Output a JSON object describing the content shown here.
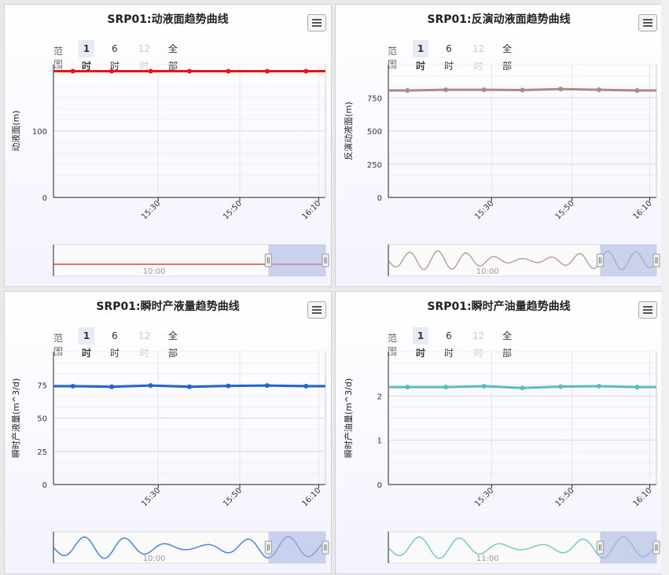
{
  "range_selector": {
    "label": "范围",
    "buttons": [
      "1时",
      "6时",
      "12时",
      "全部"
    ],
    "active": "1时",
    "disabled": "12时"
  },
  "chart_data": [
    {
      "type": "line",
      "title": "SRP01:动液面趋势曲线",
      "ylabel": "动液面(m)",
      "ylim": [
        0,
        200
      ],
      "yticks": [
        0,
        100
      ],
      "x_ticks": [
        "15:30",
        "15:50",
        "16:10"
      ],
      "x_range_min": [
        15.0,
        16.2
      ],
      "color": "#ee1111",
      "series": [
        {
          "x_min": [
            5,
            15,
            25,
            35,
            45,
            55,
            65
          ],
          "values": [
            190,
            190,
            190,
            190,
            190,
            190,
            190
          ]
        }
      ],
      "navigator_label": "10:00"
    },
    {
      "type": "line",
      "title": "SRP01:反演动液面趋势曲线",
      "ylabel": "反演动液面(m)",
      "ylim": [
        0,
        1000
      ],
      "yticks": [
        0,
        250,
        500,
        750
      ],
      "x_ticks": [
        "15:30",
        "15:50",
        "16:10"
      ],
      "color": "#b08888",
      "series": [
        {
          "x_min": [
            5,
            15,
            25,
            35,
            45,
            55,
            65
          ],
          "values": [
            805,
            810,
            810,
            808,
            815,
            810,
            805
          ]
        }
      ],
      "navigator_label": "10:00"
    },
    {
      "type": "line",
      "title": "SRP01:瞬时产液量趋势曲线",
      "ylabel": "瞬时产液量(m^3/d)",
      "ylim": [
        0,
        100
      ],
      "yticks": [
        0,
        25,
        50,
        75
      ],
      "x_ticks": [
        "15:30",
        "15:50",
        "16:10"
      ],
      "color": "#2266cc",
      "series": [
        {
          "x_min": [
            5,
            15,
            25,
            35,
            45,
            55,
            65
          ],
          "values": [
            74,
            73.5,
            74.5,
            73.5,
            74.2,
            74.5,
            74
          ]
        }
      ],
      "navigator_label": "10:00"
    },
    {
      "type": "line",
      "title": "SRP01:瞬时产油量趋势曲线",
      "ylabel": "瞬时产油量(m^3/d)",
      "ylim": [
        0,
        3
      ],
      "yticks": [
        0,
        1,
        2
      ],
      "x_ticks": [
        "15:30",
        "15:50",
        "16:10"
      ],
      "color": "#5bbcbc",
      "series": [
        {
          "x_min": [
            5,
            15,
            25,
            35,
            45,
            55,
            65
          ],
          "values": [
            2.2,
            2.2,
            2.22,
            2.18,
            2.21,
            2.22,
            2.2
          ]
        }
      ],
      "navigator_label": "11:00"
    }
  ]
}
